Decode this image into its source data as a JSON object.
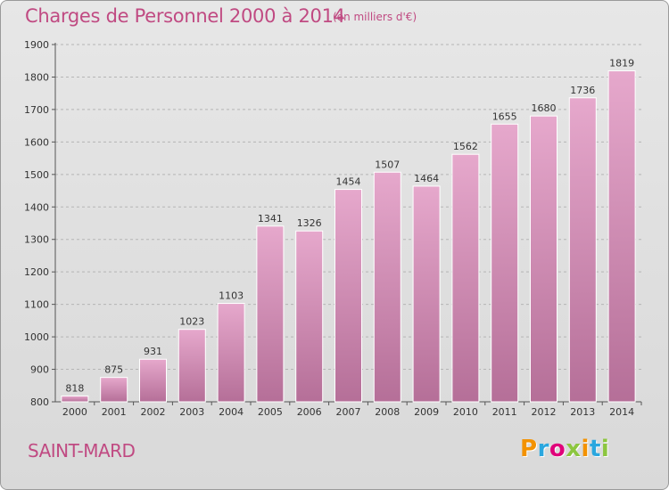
{
  "title": "Charges de Personnel 2000 à 2014",
  "unit_note": "(en milliers d'€)",
  "commune": "SAINT-MARD",
  "logo": {
    "letters": [
      "P",
      "r",
      "o",
      "x",
      "i",
      "t",
      "i"
    ],
    "colors": [
      "#f39200",
      "#2aa7df",
      "#e0007a",
      "#8cc63f",
      "#f39200",
      "#2aa7df",
      "#8cc63f"
    ]
  },
  "colors": {
    "bar_top": "#e6a8cc",
    "bar_bottom": "#b56f98",
    "accent": "#c04a82"
  },
  "chart_data": {
    "type": "bar",
    "title": "Charges de Personnel 2000 à 2014",
    "categories": [
      "2000",
      "2001",
      "2002",
      "2003",
      "2004",
      "2005",
      "2006",
      "2007",
      "2008",
      "2009",
      "2010",
      "2011",
      "2012",
      "2013",
      "2014"
    ],
    "values": [
      818,
      875,
      931,
      1023,
      1103,
      1341,
      1326,
      1454,
      1507,
      1464,
      1562,
      1655,
      1680,
      1736,
      1819
    ],
    "ylim": [
      800,
      1900
    ],
    "yticks": [
      800,
      900,
      1000,
      1100,
      1200,
      1300,
      1400,
      1500,
      1600,
      1700,
      1800,
      1900
    ],
    "grid": "horizontal dashed",
    "xlabel": "",
    "ylabel": ""
  }
}
